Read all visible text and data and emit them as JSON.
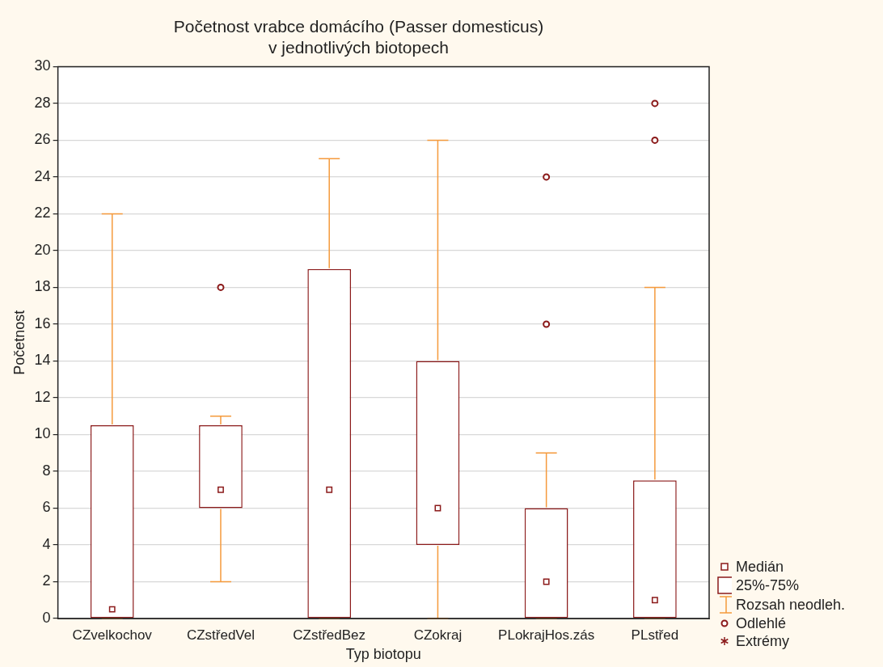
{
  "chart_data": {
    "type": "box",
    "title": "Početnost vrabce domácího (Passer domesticus)\nv jednotlivých biotopech",
    "xlabel": "Typ biotopu",
    "ylabel": "Početnost",
    "categories": [
      "CZvelkochov",
      "CZstředVel",
      "CZstředBez",
      "CZokraj",
      "PLokrajHos.zás",
      "PLstřed"
    ],
    "series": [
      {
        "color": "#8b1a1a",
        "boxes": [
          {
            "low": 0,
            "q1": 0,
            "median": 0.5,
            "q3": 10.5,
            "high": 22
          },
          {
            "low": 2,
            "q1": 6,
            "median": 7,
            "q3": 10.5,
            "high": 11,
            "outliers": [
              18
            ]
          },
          {
            "low": 0,
            "q1": 0,
            "median": 7,
            "q3": 19,
            "high": 25
          },
          {
            "low": 0,
            "q1": 4,
            "median": 6,
            "q3": 14,
            "high": 26
          },
          {
            "low": 0,
            "q1": 0,
            "median": 2,
            "q3": 6,
            "high": 9,
            "outliers": [
              16,
              24
            ]
          },
          {
            "low": 0,
            "q1": 0,
            "median": 1,
            "q3": 7.5,
            "high": 18,
            "outliers": [
              26,
              28
            ]
          }
        ]
      }
    ],
    "ylim": [
      0,
      30
    ],
    "yticks": [
      0,
      2,
      4,
      6,
      8,
      10,
      12,
      14,
      16,
      18,
      20,
      22,
      24,
      26,
      28,
      30
    ],
    "grid": "y",
    "marker": "square",
    "annotations": [
      "Medián",
      "25%-75%",
      "Rozsah neodleh.",
      "Odlehlé",
      "Extrémy"
    ]
  }
}
